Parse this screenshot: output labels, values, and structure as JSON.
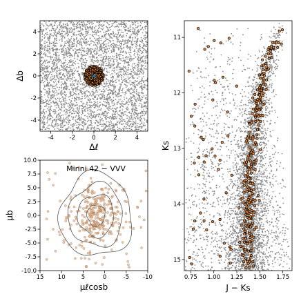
{
  "chart_data": [
    {
      "id": "spatial",
      "type": "scatter",
      "xlabel": "Δℓ",
      "ylabel": "Δb",
      "xlim": [
        -5,
        5
      ],
      "ylim": [
        -5,
        5
      ],
      "xticks": [
        -4,
        -2,
        0,
        2,
        4
      ],
      "yticks": [
        -4,
        -2,
        0,
        2,
        4
      ],
      "cluster_center": [
        0,
        0
      ],
      "cluster_radius": 0.9,
      "colors": {
        "field": "#8a8a8a",
        "members": "#e8883a",
        "center": "#1f77b4"
      }
    },
    {
      "id": "proper-motion",
      "type": "scatter",
      "title": "Minni 42  −  VVV",
      "xlabel": "μℓcosb",
      "ylabel": "μb",
      "xlim": [
        15,
        -10
      ],
      "ylim": [
        -10,
        10
      ],
      "xticks": [
        15,
        10,
        5,
        0,
        -5,
        -10
      ],
      "yticks": [
        -10.0,
        -7.5,
        -5.0,
        -2.5,
        0.0,
        2.5,
        5.0,
        7.5,
        10.0
      ],
      "cluster_center": [
        2.0,
        0.0
      ],
      "contour_radii": [
        2.0,
        4.0,
        6.0,
        8.0
      ],
      "colors": {
        "points": "#d9a57a",
        "contours": "#555555"
      }
    },
    {
      "id": "cmd",
      "type": "scatter",
      "xlabel": "J − Ks",
      "ylabel": "Ks",
      "xlim": [
        0.68,
        1.85
      ],
      "ylim": [
        15.2,
        10.7
      ],
      "xticks": [
        0.75,
        1.0,
        1.25,
        1.5,
        1.75
      ],
      "xtick_labels": [
        "0.75",
        "1.00",
        "1.25",
        "1.50",
        "1.75"
      ],
      "yticks": [
        11,
        12,
        13,
        14,
        15
      ],
      "sequence": {
        "ks": [
          10.8,
          11.5,
          12.0,
          12.5,
          13.0,
          13.5,
          14.0,
          14.5,
          15.0
        ],
        "color": [
          1.72,
          1.58,
          1.5,
          1.45,
          1.41,
          1.39,
          1.38,
          1.37,
          1.36
        ]
      },
      "colors": {
        "field": "#8a8a8a",
        "members": "#e8883a"
      }
    }
  ]
}
